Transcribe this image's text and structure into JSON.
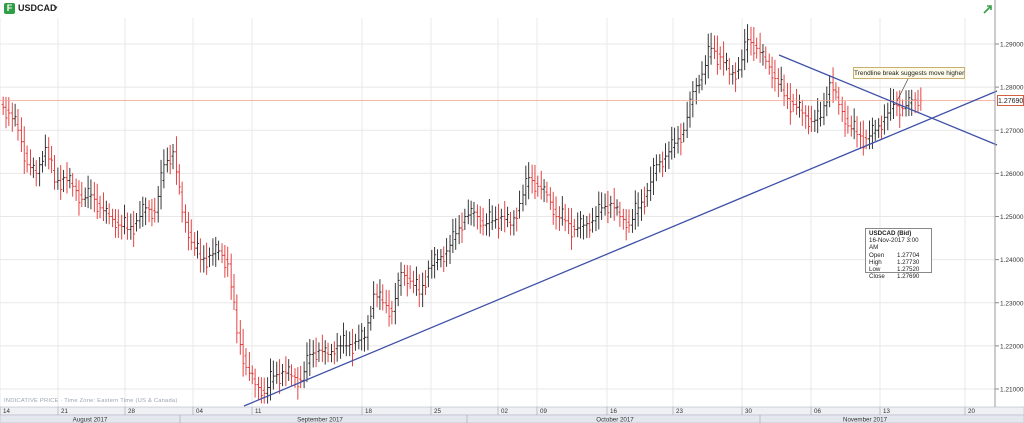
{
  "header": {
    "badge": "F",
    "symbol": "USDCAD",
    "caret": "▾",
    "expand_icon": "expand-arrow-icon"
  },
  "annotation_text": "Trendline break suggests move higher",
  "info_box": {
    "title": "USDCAD (Bid)",
    "datetime": "16-Nov-2017 3:00 AM",
    "rows": [
      {
        "label": "Open",
        "value": "1.27704"
      },
      {
        "label": "High",
        "value": "1.27730"
      },
      {
        "label": "Low",
        "value": "1.27520"
      },
      {
        "label": "Close",
        "value": "1.27690"
      }
    ]
  },
  "disclaimer": "INDICATIVE PRICE · Time Zone: Eastern Time (US & Canada)",
  "colors": {
    "up_candle": "#222222",
    "down_candle": "#e03030",
    "trendline": "#3f51a8",
    "price_line": "#f0a090",
    "grid": "#e8e8e8"
  },
  "chart_data": {
    "type": "candlestick",
    "title": "USDCAD",
    "ylim": [
      1.205,
      1.2915
    ],
    "y_ticks": [
      "1.29000",
      "1.28000",
      "1.27000",
      "1.26000",
      "1.25000",
      "1.24000",
      "1.23000",
      "1.22000",
      "1.21000"
    ],
    "x_day_labels": [
      "14",
      "21",
      "28",
      "04",
      "11",
      "18",
      "25",
      "02",
      "09",
      "16",
      "23",
      "30",
      "06",
      "13",
      "20"
    ],
    "x_month_labels": [
      "August 2017",
      "September 2017",
      "October 2017",
      "November 2017"
    ],
    "last_price": "1.27690",
    "closes": [
      1.274,
      1.27,
      1.262,
      1.26,
      1.266,
      1.258,
      1.259,
      1.257,
      1.254,
      1.255,
      1.252,
      1.25,
      1.248,
      1.247,
      1.249,
      1.252,
      1.251,
      1.262,
      1.265,
      1.251,
      1.244,
      1.24,
      1.241,
      1.242,
      1.239,
      1.223,
      1.215,
      1.211,
      1.209,
      1.213,
      1.214,
      1.213,
      1.212,
      1.218,
      1.219,
      1.218,
      1.22,
      1.22,
      1.221,
      1.222,
      1.232,
      1.23,
      1.228,
      1.237,
      1.235,
      1.232,
      1.238,
      1.24,
      1.242,
      1.246,
      1.25,
      1.251,
      1.248,
      1.249,
      1.25,
      1.248,
      1.253,
      1.259,
      1.257,
      1.255,
      1.25,
      1.249,
      1.247,
      1.248,
      1.249,
      1.252,
      1.253,
      1.25,
      1.248,
      1.252,
      1.256,
      1.262,
      1.264,
      1.267,
      1.27,
      1.279,
      1.283,
      1.289,
      1.287,
      1.283,
      1.284,
      1.291,
      1.289,
      1.286,
      1.282,
      1.278,
      1.276,
      1.274,
      1.272,
      1.273,
      1.281,
      1.276,
      1.271,
      1.269,
      1.268,
      1.27,
      1.273,
      1.276,
      1.275,
      1.277,
      1.2769
    ],
    "trendlines": [
      {
        "name": "rising support",
        "from": {
          "x": "2017-09-08",
          "y": 1.2055
        },
        "to": {
          "x": "2017-11-20",
          "y": 1.2785
        }
      },
      {
        "name": "falling resistance",
        "from": {
          "x": "2017-11-01",
          "y": 1.2875
        },
        "to": {
          "x": "2017-11-20",
          "y": 1.2665
        }
      }
    ]
  }
}
